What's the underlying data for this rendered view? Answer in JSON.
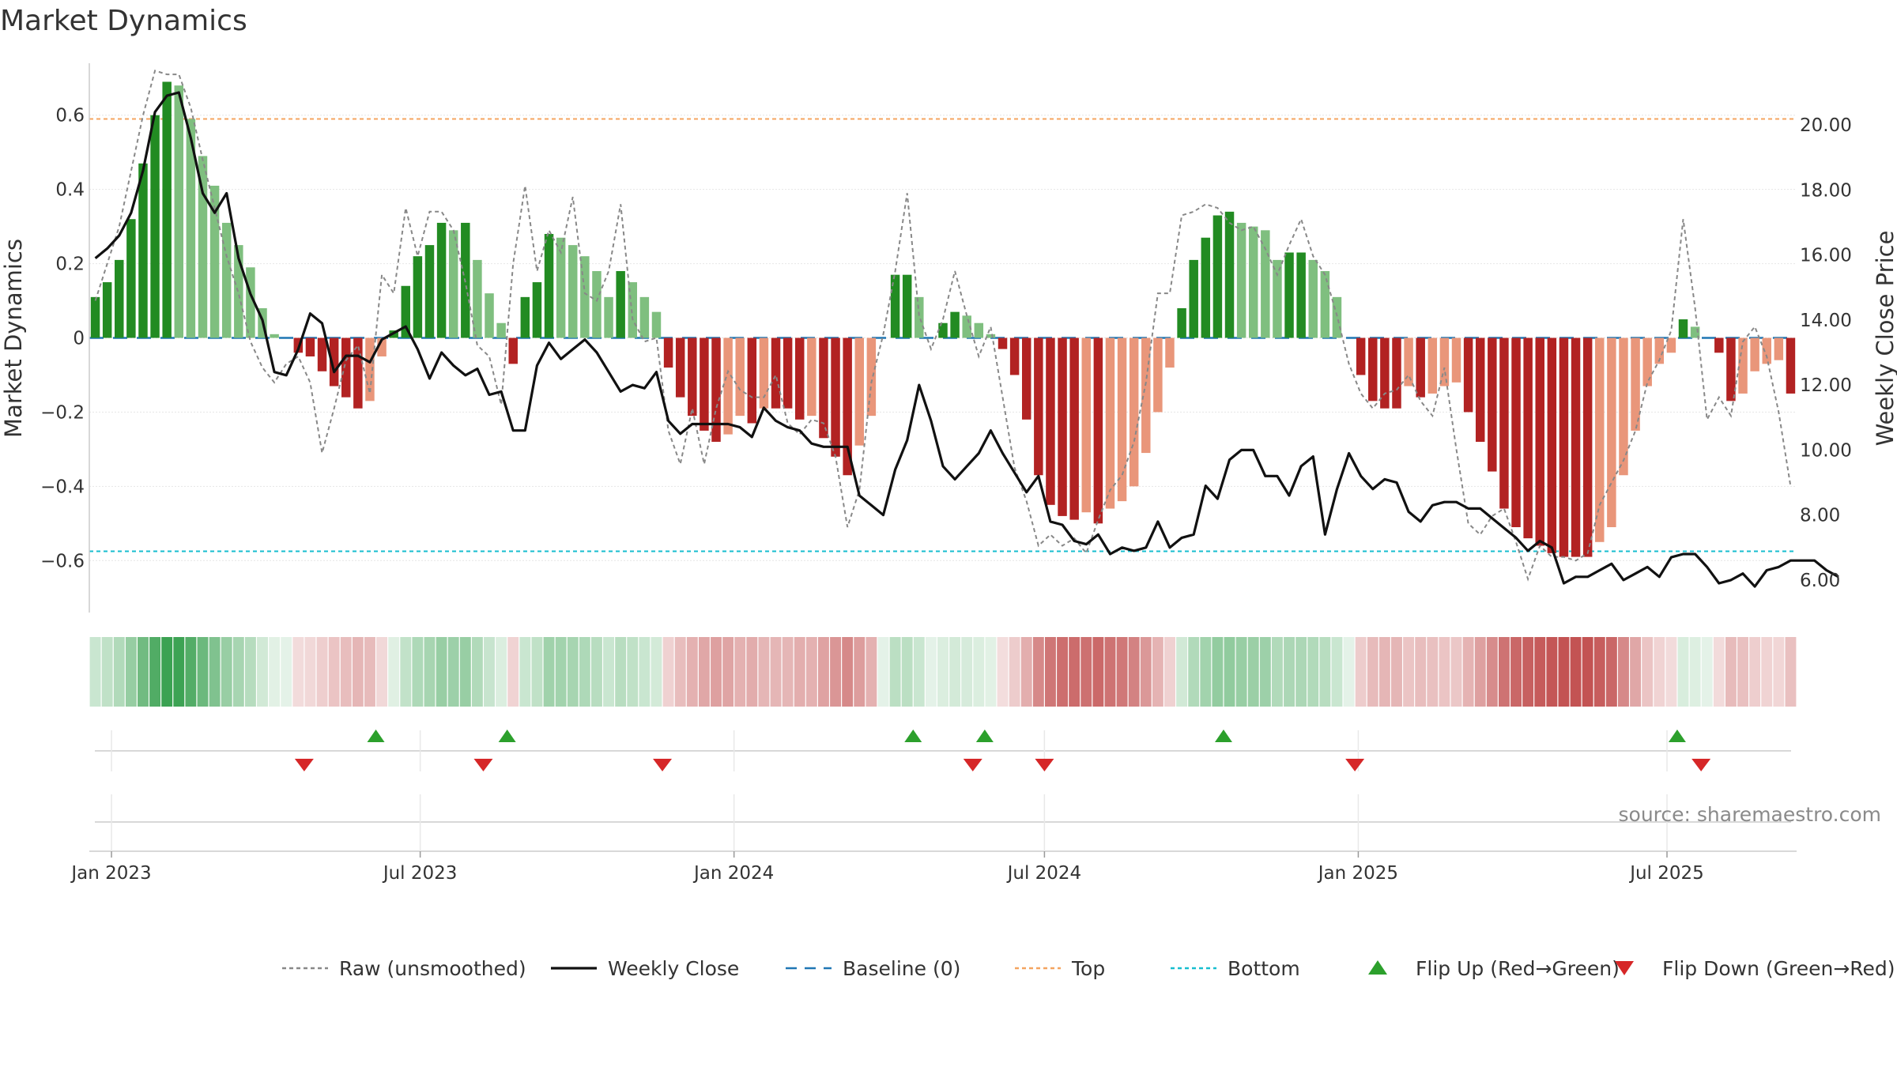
{
  "chart_data": {
    "type": "bar",
    "title": "Market Dynamics",
    "ylabel": "Market Dynamics",
    "ylabel_right": "Weekly Close Price",
    "ylim": [
      -0.74,
      0.74
    ],
    "ylim_right": [
      5.0,
      21.9
    ],
    "yticks": [
      0.6,
      0.4,
      0.2,
      0,
      -0.2,
      -0.4,
      -0.6
    ],
    "ytick_labels": [
      "0.6",
      "0.4",
      "0.2",
      "0",
      "−0.2",
      "−0.4",
      "−0.6"
    ],
    "yticks_right": [
      20,
      18,
      16,
      14,
      12,
      10,
      8,
      6
    ],
    "ytick_labels_right": [
      "20.00",
      "18.00",
      "16.00",
      "14.00",
      "12.00",
      "10.00",
      "8.00",
      "6.00"
    ],
    "x_start": "2022-12-19",
    "x_end": "2025-09-15",
    "xticks": [
      "2023-01-01",
      "2023-07-01",
      "2024-01-01",
      "2024-07-01",
      "2025-01-01",
      "2025-07-01"
    ],
    "xtick_labels": [
      "Jan 2023",
      "Jul 2023",
      "Jan 2024",
      "Jul 2024",
      "Jan 2025",
      "Jul 2025"
    ],
    "grid": true,
    "legend_position": "bottom",
    "top_line": 0.59,
    "bottom_line": -0.575,
    "baseline": 0,
    "colors": {
      "pos_rising": "#228b22",
      "pos_falling": "#7fbf7f",
      "neg_falling": "#b22222",
      "neg_rising": "#e9967a",
      "close": "#111111",
      "raw": "#888888",
      "baseline": "#1f77b4",
      "top": "#f4a460",
      "bottom": "#17becf",
      "flip_up": "#2ca02c",
      "flip_down": "#d62728"
    },
    "series": [
      {
        "name": "Market Dynamics",
        "values": [
          0.11,
          0.15,
          0.21,
          0.32,
          0.47,
          0.6,
          0.69,
          0.68,
          0.59,
          0.49,
          0.41,
          0.31,
          0.25,
          0.19,
          0.08,
          0.01,
          0.0,
          -0.04,
          -0.05,
          -0.09,
          -0.13,
          -0.16,
          -0.19,
          -0.17,
          -0.05,
          0.02,
          0.14,
          0.22,
          0.25,
          0.31,
          0.29,
          0.31,
          0.21,
          0.12,
          0.04,
          -0.07,
          0.11,
          0.15,
          0.28,
          0.27,
          0.25,
          0.22,
          0.18,
          0.11,
          0.18,
          0.15,
          0.11,
          0.07,
          -0.08,
          -0.16,
          -0.21,
          -0.25,
          -0.28,
          -0.26,
          -0.21,
          -0.23,
          -0.19,
          -0.19,
          -0.19,
          -0.22,
          -0.21,
          -0.27,
          -0.32,
          -0.37,
          -0.29,
          -0.21,
          0.0,
          0.17,
          0.17,
          0.11,
          0.0,
          0.04,
          0.07,
          0.06,
          0.04,
          0.01,
          -0.03,
          -0.1,
          -0.22,
          -0.37,
          -0.45,
          -0.48,
          -0.49,
          -0.47,
          -0.5,
          -0.46,
          -0.44,
          -0.4,
          -0.31,
          -0.2,
          -0.08,
          0.08,
          0.21,
          0.27,
          0.33,
          0.34,
          0.31,
          0.3,
          0.29,
          0.21,
          0.23,
          0.23,
          0.21,
          0.18,
          0.11,
          0.0,
          -0.1,
          -0.17,
          -0.19,
          -0.19,
          -0.13,
          -0.16,
          -0.15,
          -0.13,
          -0.12,
          -0.2,
          -0.28,
          -0.36,
          -0.46,
          -0.51,
          -0.54,
          -0.56,
          -0.58,
          -0.59,
          -0.59,
          -0.59,
          -0.55,
          -0.51,
          -0.37,
          -0.25,
          -0.13,
          -0.07,
          -0.04,
          0.05,
          0.03,
          0.0,
          -0.04,
          -0.17,
          -0.15,
          -0.09,
          -0.07,
          -0.06,
          -0.15
        ]
      },
      {
        "name": "Raw (unsmoothed)",
        "values": [
          0.1,
          0.2,
          0.3,
          0.45,
          0.6,
          0.72,
          0.71,
          0.71,
          0.62,
          0.48,
          0.35,
          0.22,
          0.12,
          -0.01,
          -0.08,
          -0.12,
          -0.07,
          -0.05,
          -0.12,
          -0.31,
          -0.19,
          -0.06,
          -0.02,
          -0.15,
          0.17,
          0.12,
          0.35,
          0.22,
          0.34,
          0.34,
          0.29,
          0.15,
          -0.02,
          -0.05,
          -0.18,
          0.2,
          0.41,
          0.18,
          0.29,
          0.23,
          0.38,
          0.12,
          0.1,
          0.18,
          0.36,
          0.05,
          -0.01,
          0.0,
          -0.25,
          -0.34,
          -0.19,
          -0.34,
          -0.19,
          -0.09,
          -0.14,
          -0.16,
          -0.16,
          -0.1,
          -0.23,
          -0.26,
          -0.22,
          -0.23,
          -0.32,
          -0.51,
          -0.41,
          -0.12,
          0.01,
          0.18,
          0.39,
          0.06,
          -0.03,
          0.05,
          0.18,
          0.06,
          -0.05,
          0.03,
          -0.16,
          -0.35,
          -0.44,
          -0.56,
          -0.53,
          -0.56,
          -0.54,
          -0.58,
          -0.49,
          -0.41,
          -0.37,
          -0.28,
          -0.12,
          0.12,
          0.12,
          0.33,
          0.34,
          0.36,
          0.35,
          0.31,
          0.29,
          0.3,
          0.24,
          0.17,
          0.25,
          0.32,
          0.22,
          0.17,
          0.06,
          -0.07,
          -0.15,
          -0.19,
          -0.15,
          -0.14,
          -0.1,
          -0.17,
          -0.21,
          -0.08,
          -0.3,
          -0.5,
          -0.53,
          -0.48,
          -0.46,
          -0.55,
          -0.65,
          -0.56,
          -0.59,
          -0.59,
          -0.6,
          -0.58,
          -0.45,
          -0.39,
          -0.33,
          -0.25,
          -0.12,
          -0.06,
          0.02,
          0.32,
          0.08,
          -0.22,
          -0.16,
          -0.21,
          -0.01,
          0.03,
          -0.05,
          -0.2,
          -0.4
        ]
      },
      {
        "name": "Weekly Close",
        "values": [
          15.9,
          16.2,
          16.6,
          17.3,
          18.6,
          20.4,
          20.9,
          21.0,
          19.6,
          17.9,
          17.3,
          17.9,
          15.9,
          14.8,
          14.0,
          12.4,
          12.3,
          13.1,
          14.2,
          13.9,
          12.4,
          12.9,
          12.9,
          12.7,
          13.4,
          13.6,
          13.8,
          13.1,
          12.2,
          13.0,
          12.6,
          12.3,
          12.5,
          11.7,
          11.8,
          10.6,
          10.6,
          12.6,
          13.3,
          12.8,
          13.1,
          13.4,
          13.0,
          12.4,
          11.8,
          12.0,
          11.9,
          12.4,
          10.9,
          10.5,
          10.8,
          10.8,
          10.8,
          10.8,
          10.7,
          10.4,
          11.3,
          10.9,
          10.7,
          10.6,
          10.2,
          10.1,
          10.1,
          10.1,
          8.6,
          8.3,
          8.0,
          9.4,
          10.3,
          12.0,
          10.9,
          9.5,
          9.1,
          9.5,
          9.9,
          10.6,
          9.9,
          9.3,
          8.7,
          9.2,
          7.8,
          7.7,
          7.2,
          7.1,
          7.4,
          6.8,
          7.0,
          6.9,
          7.0,
          7.8,
          7.0,
          7.3,
          7.4,
          8.9,
          8.5,
          9.7,
          10.0,
          10.0,
          9.2,
          9.2,
          8.6,
          9.5,
          9.8,
          7.4,
          8.8,
          9.9,
          9.2,
          8.8,
          9.1,
          9.0,
          8.1,
          7.8,
          8.3,
          8.4,
          8.4,
          8.2,
          8.2,
          7.9,
          7.6,
          7.3,
          6.9,
          7.2,
          7.0,
          5.9,
          6.1,
          6.1,
          6.3,
          6.5,
          6.0,
          6.2,
          6.4,
          6.1,
          6.7,
          6.8,
          6.8,
          6.4,
          5.9,
          6.0,
          6.2,
          5.8,
          6.3,
          6.4,
          6.6,
          6.6,
          6.6,
          6.3,
          6.1
        ]
      }
    ],
    "flips_up": [
      "2023-06-05",
      "2023-08-21",
      "2024-04-15",
      "2024-05-27",
      "2024-10-14",
      "2025-07-07"
    ],
    "flips_down": [
      "2023-04-24",
      "2023-08-07",
      "2023-11-20",
      "2024-05-20",
      "2024-07-01",
      "2024-12-30",
      "2025-07-21"
    ],
    "source": "source: sharemaestro.com",
    "legend": [
      {
        "label": "Raw (unsmoothed)",
        "kind": "line-dotted",
        "color": "#888888"
      },
      {
        "label": "Weekly Close",
        "kind": "line-solid",
        "color": "#111111"
      },
      {
        "label": "Baseline (0)",
        "kind": "line-dashed",
        "color": "#1f77b4"
      },
      {
        "label": "Top",
        "kind": "line-dotted",
        "color": "#f4a460"
      },
      {
        "label": "Bottom",
        "kind": "line-dotted",
        "color": "#17becf"
      },
      {
        "label": "Flip Up (Red→Green)",
        "kind": "triangle-up",
        "color": "#2ca02c"
      },
      {
        "label": "Flip Down (Green→Red)",
        "kind": "triangle-down",
        "color": "#d62728"
      }
    ]
  }
}
